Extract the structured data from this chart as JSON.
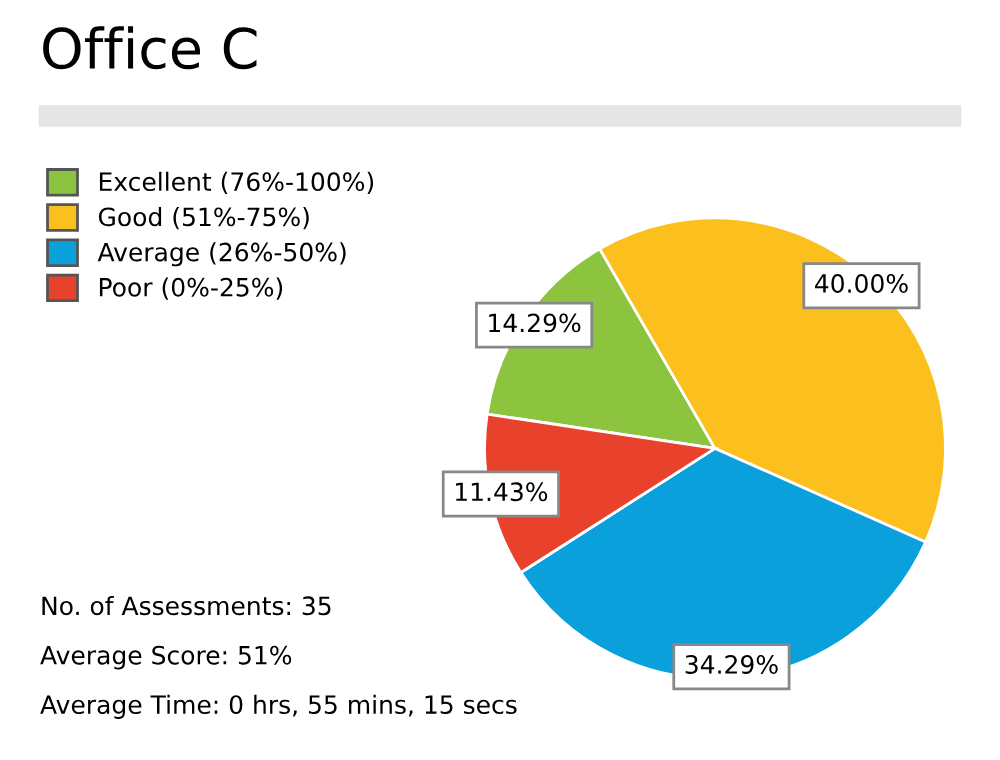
{
  "chart_data": {
    "type": "pie",
    "title": "Office C",
    "categories": [
      "Excellent (76%-100%)",
      "Good (51%-75%)",
      "Average (26%-50%)",
      "Poor (0%-25%)"
    ],
    "values": [
      14.29,
      40.0,
      34.29,
      11.43
    ],
    "colors": [
      "#8cc43f",
      "#fbbf1e",
      "#0aa0dc",
      "#e8412c"
    ],
    "value_labels": [
      "14.29%",
      "40.00%",
      "34.29%",
      "11.43%"
    ],
    "legend": "top left",
    "annotations": [
      "No. of Assessments: 35",
      "Average Score: 51%",
      "Average Time: 0 hrs, 55 mins, 15 secs"
    ]
  }
}
